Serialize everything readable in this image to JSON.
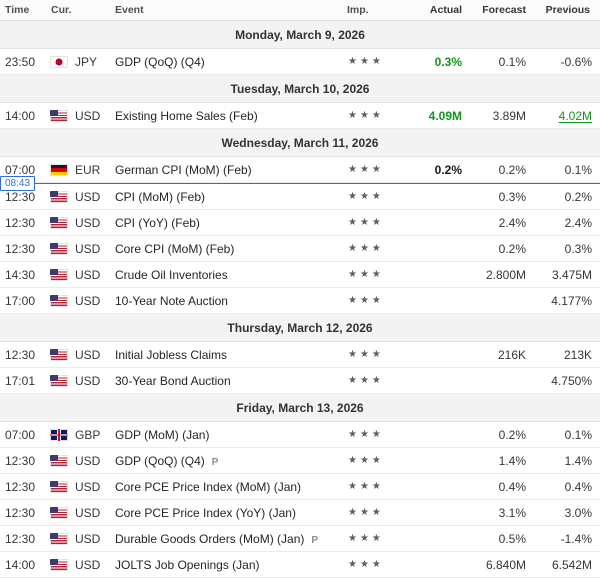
{
  "header": {
    "columns": [
      "Time",
      "Cur.",
      "Event",
      "Imp.",
      "Actual",
      "Forecast",
      "Previous"
    ]
  },
  "time_marker": {
    "label": "08:43",
    "group": 2,
    "after_row": 0
  },
  "colors": {
    "positive": "#14941e",
    "marker_blue": "#2b6fd4",
    "star": "#5b5e62"
  },
  "importance_star": "★",
  "groups": [
    {
      "date": "Monday, March 9, 2026",
      "rows": [
        {
          "time": "23:50",
          "currency": "JPY",
          "flag": "jp",
          "event": "GDP (QoQ) (Q4)",
          "importance": 3,
          "actual": "0.3%",
          "actual_style": "positive",
          "forecast": "0.1%",
          "previous": "-0.6%"
        }
      ]
    },
    {
      "date": "Tuesday, March 10, 2026",
      "rows": [
        {
          "time": "14:00",
          "currency": "USD",
          "flag": "us",
          "event": "Existing Home Sales (Feb)",
          "importance": 3,
          "actual": "4.09M",
          "actual_style": "positive",
          "forecast": "3.89M",
          "previous": "4.02M",
          "previous_style": "revised"
        }
      ]
    },
    {
      "date": "Wednesday, March 11, 2026",
      "rows": [
        {
          "time": "07:00",
          "currency": "EUR",
          "flag": "de",
          "event": "German CPI (MoM) (Feb)",
          "importance": 3,
          "actual": "0.2%",
          "forecast": "0.2%",
          "previous": "0.1%"
        },
        {
          "time": "12:30",
          "currency": "USD",
          "flag": "us",
          "event": "CPI (MoM) (Feb)",
          "importance": 3,
          "forecast": "0.3%",
          "previous": "0.2%"
        },
        {
          "time": "12:30",
          "currency": "USD",
          "flag": "us",
          "event": "CPI (YoY) (Feb)",
          "importance": 3,
          "forecast": "2.4%",
          "previous": "2.4%"
        },
        {
          "time": "12:30",
          "currency": "USD",
          "flag": "us",
          "event": "Core CPI (MoM) (Feb)",
          "importance": 3,
          "forecast": "0.2%",
          "previous": "0.3%"
        },
        {
          "time": "14:30",
          "currency": "USD",
          "flag": "us",
          "event": "Crude Oil Inventories",
          "importance": 3,
          "forecast": "2.800M",
          "previous": "3.475M"
        },
        {
          "time": "17:00",
          "currency": "USD",
          "flag": "us",
          "event": "10-Year Note Auction",
          "importance": 3,
          "previous": "4.177%"
        }
      ]
    },
    {
      "date": "Thursday, March 12, 2026",
      "rows": [
        {
          "time": "12:30",
          "currency": "USD",
          "flag": "us",
          "event": "Initial Jobless Claims",
          "importance": 3,
          "forecast": "216K",
          "previous": "213K"
        },
        {
          "time": "17:01",
          "currency": "USD",
          "flag": "us",
          "event": "30-Year Bond Auction",
          "importance": 3,
          "previous": "4.750%"
        }
      ]
    },
    {
      "date": "Friday, March 13, 2026",
      "rows": [
        {
          "time": "07:00",
          "currency": "GBP",
          "flag": "gb",
          "event": "GDP (MoM) (Jan)",
          "importance": 3,
          "forecast": "0.2%",
          "previous": "0.1%"
        },
        {
          "time": "12:30",
          "currency": "USD",
          "flag": "us",
          "event": "GDP (QoQ) (Q4)",
          "tag": "P",
          "importance": 3,
          "forecast": "1.4%",
          "previous": "1.4%"
        },
        {
          "time": "12:30",
          "currency": "USD",
          "flag": "us",
          "event": "Core PCE Price Index (MoM) (Jan)",
          "importance": 3,
          "forecast": "0.4%",
          "previous": "0.4%"
        },
        {
          "time": "12:30",
          "currency": "USD",
          "flag": "us",
          "event": "Core PCE Price Index (YoY) (Jan)",
          "importance": 3,
          "forecast": "3.1%",
          "previous": "3.0%"
        },
        {
          "time": "12:30",
          "currency": "USD",
          "flag": "us",
          "event": "Durable Goods Orders (MoM) (Jan)",
          "tag": "P",
          "importance": 3,
          "forecast": "0.5%",
          "previous": "-1.4%"
        },
        {
          "time": "14:00",
          "currency": "USD",
          "flag": "us",
          "event": "JOLTS Job Openings (Jan)",
          "importance": 3,
          "forecast": "6.840M",
          "previous": "6.542M"
        }
      ]
    }
  ]
}
